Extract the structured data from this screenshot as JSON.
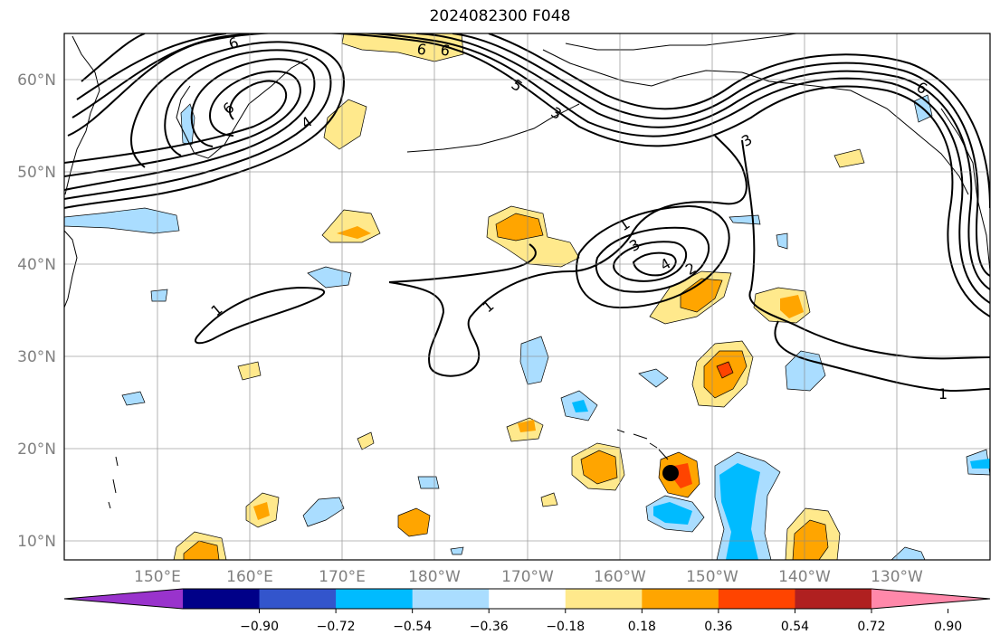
{
  "title": "2024082300 F048",
  "lat_labels": [
    "60°N",
    "50°N",
    "40°N",
    "30°N",
    "20°N",
    "10°N"
  ],
  "lon_labels": [
    "150°E",
    "160°E",
    "170°E",
    "180°W",
    "170°W",
    "160°W",
    "150°W",
    "140°W",
    "130°W"
  ],
  "colorbar": {
    "colors": [
      "#9933cc",
      "#000088",
      "#3355cc",
      "#00bbff",
      "#aaddff",
      "#ffffff",
      "#ffe98c",
      "#ffa500",
      "#ff4400",
      "#b02020",
      "#ff88aa"
    ],
    "tick_labels": [
      "−0.90",
      "−0.72",
      "−0.54",
      "−0.36",
      "−0.18",
      "0.18",
      "0.36",
      "0.54",
      "0.72",
      "0.90"
    ]
  },
  "contour_labels": [
    "6",
    "6",
    "6",
    "6",
    "5",
    "4",
    "3",
    "1",
    "3",
    "4",
    "2",
    "1",
    "1",
    "6",
    "3",
    "1"
  ],
  "marker": {
    "label": "storm-center",
    "color": "#000000"
  }
}
